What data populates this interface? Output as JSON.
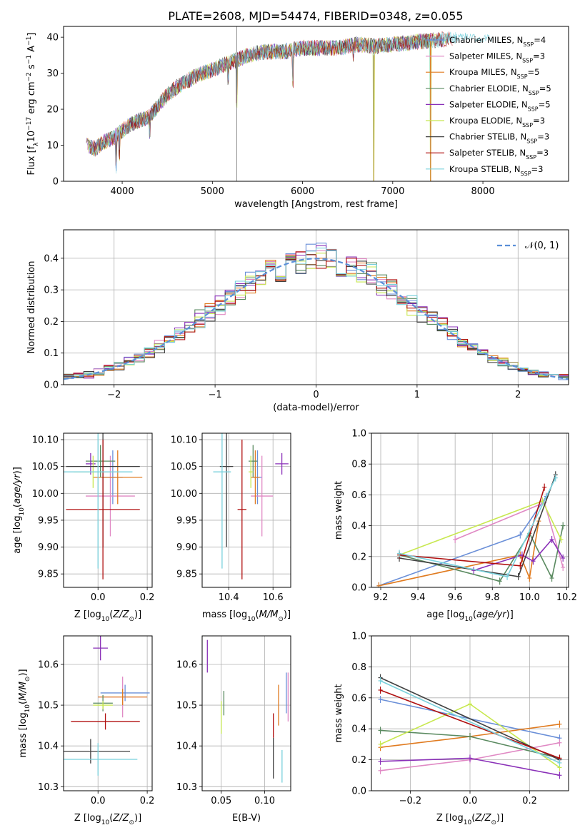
{
  "title": "PLATE=2608, MJD=54474, FIBERID=0348, z=0.055",
  "colors": {
    "Chabrier MILES": "#6a8fd8",
    "Salpeter MILES": "#e089c4",
    "Kroupa MILES": "#e07b20",
    "Chabrier ELODIE": "#5a8a60",
    "Salpeter ELODIE": "#8a30b8",
    "Kroupa ELODIE": "#c8e850",
    "Chabrier STELIB": "#404040",
    "Salpeter STELIB": "#b01010",
    "Kroupa STELIB": "#78d0dc"
  },
  "legend": [
    {
      "name": "Chabrier MILES",
      "nssp": "4"
    },
    {
      "name": "Salpeter MILES",
      "nssp": "3"
    },
    {
      "name": "Kroupa MILES",
      "nssp": "5"
    },
    {
      "name": "Chabrier ELODIE",
      "nssp": "5"
    },
    {
      "name": "Salpeter ELODIE",
      "nssp": "5"
    },
    {
      "name": "Kroupa ELODIE",
      "nssp": "3"
    },
    {
      "name": "Chabrier STELIB",
      "nssp": "3"
    },
    {
      "name": "Salpeter STELIB",
      "nssp": "3"
    },
    {
      "name": "Kroupa STELIB",
      "nssp": "3"
    }
  ],
  "chart_data": [
    {
      "type": "line",
      "panel": "spectrum",
      "xlabel": "wavelength [Angstrom, rest frame]",
      "ylabel": "Flux [f",
      "xlim": [
        3350,
        8950
      ],
      "ylim": [
        0,
        43
      ],
      "xticks": [
        4000,
        5000,
        6000,
        7000,
        8000
      ],
      "yticks": [
        0,
        10,
        20,
        30,
        40
      ],
      "continuum_x": [
        3600,
        3700,
        3800,
        3900,
        4000,
        4100,
        4200,
        4300,
        4400,
        4500,
        4600,
        4800,
        5000,
        5200,
        5400,
        5600,
        5800,
        6000,
        6200,
        6400,
        6600,
        6800,
        7000,
        7200,
        7400,
        7600,
        7800,
        8000,
        8200,
        8400,
        8600,
        8800
      ],
      "continuum_y": [
        10,
        9,
        11,
        12,
        14,
        16,
        17,
        18,
        21,
        24,
        26,
        29,
        31,
        33,
        35,
        36,
        36,
        37,
        37,
        37,
        38,
        37.5,
        38,
        38.5,
        39,
        39.5,
        40,
        39.5,
        39.5,
        39,
        39,
        38.5
      ],
      "features_x": [
        3933,
        3968,
        4305,
        5175,
        5270,
        5893,
        6565,
        6790,
        7420
      ],
      "features_depth": [
        12,
        8,
        6,
        6,
        16,
        12,
        4,
        36,
        38
      ],
      "legend_position": "upper right"
    },
    {
      "type": "area",
      "panel": "residual-histogram",
      "xlabel": "(data-model)/error",
      "ylabel": "Normed distribution",
      "xlim": [
        -2.5,
        2.5
      ],
      "ylim": [
        0,
        0.49
      ],
      "xticks": [
        -2,
        -1,
        0,
        1,
        2
      ],
      "yticks": [
        0.0,
        0.1,
        0.2,
        0.3,
        0.4
      ],
      "bin_width": 0.1,
      "reference_curve": "N(0,1)",
      "reference_color": "#5b8fd8",
      "legend_position": "upper right",
      "grid": true
    },
    {
      "type": "scatter",
      "panel": "age-vs-Z",
      "xlabel": "Z [log",
      "ylabel": "age  [log",
      "xlim": [
        -0.14,
        0.22
      ],
      "ylim": [
        9.825,
        10.112
      ],
      "xticks": [
        0.0,
        0.2
      ],
      "yticks": [
        9.85,
        9.9,
        9.95,
        10.0,
        10.05,
        10.1
      ],
      "points": [
        {
          "series": "Chabrier MILES",
          "x": 0.06,
          "xerr": 0.04,
          "y": 10.03,
          "yerr": 0.05
        },
        {
          "series": "Salpeter MILES",
          "x": 0.05,
          "xerr": 0.1,
          "y": 9.995,
          "yerr": 0.075
        },
        {
          "series": "Kroupa MILES",
          "x": 0.08,
          "xerr": 0.1,
          "y": 10.03,
          "yerr": 0.05
        },
        {
          "series": "Chabrier ELODIE",
          "x": 0.01,
          "xerr": 0.06,
          "y": 10.06,
          "yerr": 0.03
        },
        {
          "series": "Salpeter ELODIE",
          "x": -0.03,
          "xerr": 0.02,
          "y": 10.055,
          "yerr": 0.02
        },
        {
          "series": "Kroupa ELODIE",
          "x": -0.02,
          "xerr": 0.08,
          "y": 10.04,
          "yerr": 0.03
        },
        {
          "series": "Chabrier STELIB",
          "x": 0.02,
          "xerr": 0.15,
          "y": 10.05,
          "yerr": 0.15
        },
        {
          "series": "Salpeter STELIB",
          "x": 0.02,
          "xerr": 0.15,
          "y": 9.97,
          "yerr": 0.13
        },
        {
          "series": "Kroupa STELIB",
          "x": 0.0,
          "xerr": 0.14,
          "y": 10.04,
          "yerr": 0.18
        }
      ]
    },
    {
      "type": "scatter",
      "panel": "age-vs-mass",
      "xlabel": "mass [log",
      "xlim": [
        10.28,
        10.68
      ],
      "ylim": [
        9.825,
        10.112
      ],
      "xticks": [
        10.4,
        10.6
      ],
      "yticks": [
        9.85,
        9.9,
        9.95,
        10.0,
        10.05,
        10.1
      ],
      "points": [
        {
          "series": "Chabrier MILES",
          "x": 10.53,
          "xerr": 0.02,
          "y": 10.03,
          "yerr": 0.05
        },
        {
          "series": "Salpeter MILES",
          "x": 10.55,
          "xerr": 0.05,
          "y": 9.995,
          "yerr": 0.075
        },
        {
          "series": "Kroupa MILES",
          "x": 10.52,
          "xerr": 0.02,
          "y": 10.03,
          "yerr": 0.05
        },
        {
          "series": "Chabrier ELODIE",
          "x": 10.51,
          "xerr": 0.02,
          "y": 10.06,
          "yerr": 0.03
        },
        {
          "series": "Salpeter ELODIE",
          "x": 10.64,
          "xerr": 0.03,
          "y": 10.055,
          "yerr": 0.02
        },
        {
          "series": "Kroupa ELODIE",
          "x": 10.5,
          "xerr": 0.01,
          "y": 10.04,
          "yerr": 0.03
        },
        {
          "series": "Chabrier STELIB",
          "x": 10.39,
          "xerr": 0.03,
          "y": 10.05,
          "yerr": 0.15
        },
        {
          "series": "Salpeter STELIB",
          "x": 10.46,
          "xerr": 0.02,
          "y": 9.97,
          "yerr": 0.13
        },
        {
          "series": "Kroupa STELIB",
          "x": 10.37,
          "xerr": 0.04,
          "y": 10.04,
          "yerr": 0.18
        }
      ]
    },
    {
      "type": "line",
      "panel": "massweight-vs-age",
      "xlabel": "age  [log",
      "ylabel": "mass weight",
      "xlim": [
        9.15,
        10.21
      ],
      "ylim": [
        0,
        1
      ],
      "xticks": [
        9.2,
        9.4,
        9.6,
        9.8,
        10.0,
        10.2
      ],
      "yticks": [
        0.0,
        0.2,
        0.4,
        0.6,
        0.8,
        1.0
      ],
      "series": [
        {
          "name": "Chabrier MILES",
          "x": [
            9.19,
            9.95,
            10.09
          ],
          "y": [
            0.01,
            0.34,
            0.59
          ]
        },
        {
          "name": "Salpeter MILES",
          "x": [
            9.6,
            10.08,
            10.18
          ],
          "y": [
            0.31,
            0.55,
            0.13
          ]
        },
        {
          "name": "Kroupa MILES",
          "x": [
            9.19,
            9.95,
            10.0,
            10.05
          ],
          "y": [
            0.01,
            0.21,
            0.06,
            0.43
          ]
        },
        {
          "name": "Chabrier ELODIE",
          "x": [
            9.3,
            9.84,
            10.0,
            10.12,
            10.18
          ],
          "y": [
            0.21,
            0.04,
            0.35,
            0.06,
            0.4
          ]
        },
        {
          "name": "Salpeter ELODIE",
          "x": [
            9.7,
            9.96,
            10.02,
            10.12,
            10.18
          ],
          "y": [
            0.11,
            0.21,
            0.17,
            0.31,
            0.19
          ]
        },
        {
          "name": "Kroupa ELODIE",
          "x": [
            9.3,
            10.07,
            10.17
          ],
          "y": [
            0.21,
            0.56,
            0.31
          ]
        },
        {
          "name": "Chabrier STELIB",
          "x": [
            9.3,
            9.94,
            10.14
          ],
          "y": [
            0.19,
            0.07,
            0.73
          ]
        },
        {
          "name": "Salpeter STELIB",
          "x": [
            9.3,
            9.95,
            10.08
          ],
          "y": [
            0.21,
            0.14,
            0.65
          ]
        },
        {
          "name": "Kroupa STELIB",
          "x": [
            9.3,
            9.88,
            10.14
          ],
          "y": [
            0.22,
            0.07,
            0.71
          ]
        }
      ]
    },
    {
      "type": "scatter",
      "panel": "mass-vs-Z",
      "xlabel": "Z [log",
      "ylabel": "mass [log",
      "xlim": [
        -0.14,
        0.22
      ],
      "ylim": [
        10.29,
        10.67
      ],
      "xticks": [
        0.0,
        0.2
      ],
      "yticks": [
        10.3,
        10.4,
        10.5,
        10.6
      ],
      "points": [
        {
          "series": "Chabrier MILES",
          "x": 0.11,
          "xerr": 0.1,
          "y": 10.53,
          "yerr": 0.02
        },
        {
          "series": "Salpeter MILES",
          "x": 0.1,
          "xerr": 0.1,
          "y": 10.52,
          "yerr": 0.05
        },
        {
          "series": "Kroupa MILES",
          "x": 0.1,
          "xerr": 0.1,
          "y": 10.52,
          "yerr": 0.02
        },
        {
          "series": "Chabrier ELODIE",
          "x": 0.02,
          "xerr": 0.04,
          "y": 10.505,
          "yerr": 0.02
        },
        {
          "series": "Salpeter ELODIE",
          "x": 0.01,
          "xerr": 0.03,
          "y": 10.64,
          "yerr": 0.03
        },
        {
          "series": "Kroupa ELODIE",
          "x": 0.02,
          "xerr": 0.04,
          "y": 10.5,
          "yerr": 0.01
        },
        {
          "series": "Chabrier STELIB",
          "x": -0.03,
          "xerr": 0.16,
          "y": 10.387,
          "yerr": 0.03
        },
        {
          "series": "Salpeter STELIB",
          "x": 0.03,
          "xerr": 0.14,
          "y": 10.46,
          "yerr": 0.02
        },
        {
          "series": "Kroupa STELIB",
          "x": 0.0,
          "xerr": 0.16,
          "y": 10.367,
          "yerr": 0.04
        }
      ]
    },
    {
      "type": "scatter",
      "panel": "mass-vs-EBV",
      "xlabel": "E(B-V)",
      "xlim": [
        0.028,
        0.13
      ],
      "ylim": [
        10.29,
        10.67
      ],
      "xticks": [
        0.05,
        0.1
      ],
      "yticks": [
        10.3,
        10.4,
        10.5,
        10.6
      ],
      "points": [
        {
          "series": "Chabrier MILES",
          "x": 0.125,
          "y": 10.53,
          "yerr": 0.05
        },
        {
          "series": "Salpeter MILES",
          "x": 0.127,
          "y": 10.52,
          "yerr": 0.06
        },
        {
          "series": "Kroupa MILES",
          "x": 0.116,
          "y": 10.5,
          "yerr": 0.05
        },
        {
          "series": "Chabrier ELODIE",
          "x": 0.053,
          "y": 10.505,
          "yerr": 0.03
        },
        {
          "series": "Salpeter ELODIE",
          "x": 0.034,
          "y": 10.62,
          "yerr": 0.04
        },
        {
          "series": "Kroupa ELODIE",
          "x": 0.05,
          "y": 10.47,
          "yerr": 0.04
        },
        {
          "series": "Chabrier STELIB",
          "x": 0.11,
          "y": 10.37,
          "yerr": 0.05
        },
        {
          "series": "Salpeter STELIB",
          "x": 0.11,
          "y": 10.45,
          "yerr": 0.03
        },
        {
          "series": "Kroupa STELIB",
          "x": 0.12,
          "y": 10.35,
          "yerr": 0.04
        }
      ]
    },
    {
      "type": "line",
      "panel": "massweight-vs-Z",
      "xlabel": "Z [log",
      "ylabel": "mass weight",
      "xlim": [
        -0.33,
        0.33
      ],
      "ylim": [
        0,
        1
      ],
      "xticks": [
        -0.2,
        0.0,
        0.2
      ],
      "yticks": [
        0.0,
        0.2,
        0.4,
        0.6,
        0.8,
        1.0
      ],
      "series": [
        {
          "name": "Chabrier MILES",
          "x": [
            -0.3,
            0.3
          ],
          "y": [
            0.59,
            0.34
          ]
        },
        {
          "name": "Salpeter MILES",
          "x": [
            -0.3,
            0.0,
            0.3
          ],
          "y": [
            0.13,
            0.2,
            0.31
          ]
        },
        {
          "name": "Kroupa MILES",
          "x": [
            -0.3,
            0.0,
            0.3
          ],
          "y": [
            0.28,
            0.35,
            0.43
          ]
        },
        {
          "name": "Chabrier ELODIE",
          "x": [
            -0.3,
            0.0,
            0.3
          ],
          "y": [
            0.39,
            0.35,
            0.21
          ]
        },
        {
          "name": "Salpeter ELODIE",
          "x": [
            -0.3,
            0.0,
            0.3
          ],
          "y": [
            0.19,
            0.21,
            0.1
          ]
        },
        {
          "name": "Kroupa ELODIE",
          "x": [
            -0.3,
            0.0,
            0.3
          ],
          "y": [
            0.3,
            0.56,
            0.15
          ]
        },
        {
          "name": "Chabrier STELIB",
          "x": [
            -0.3,
            0.3
          ],
          "y": [
            0.73,
            0.2
          ]
        },
        {
          "name": "Salpeter STELIB",
          "x": [
            -0.3,
            0.3
          ],
          "y": [
            0.65,
            0.21
          ]
        },
        {
          "name": "Kroupa STELIB",
          "x": [
            -0.3,
            0.3
          ],
          "y": [
            0.71,
            0.18
          ]
        }
      ]
    }
  ]
}
